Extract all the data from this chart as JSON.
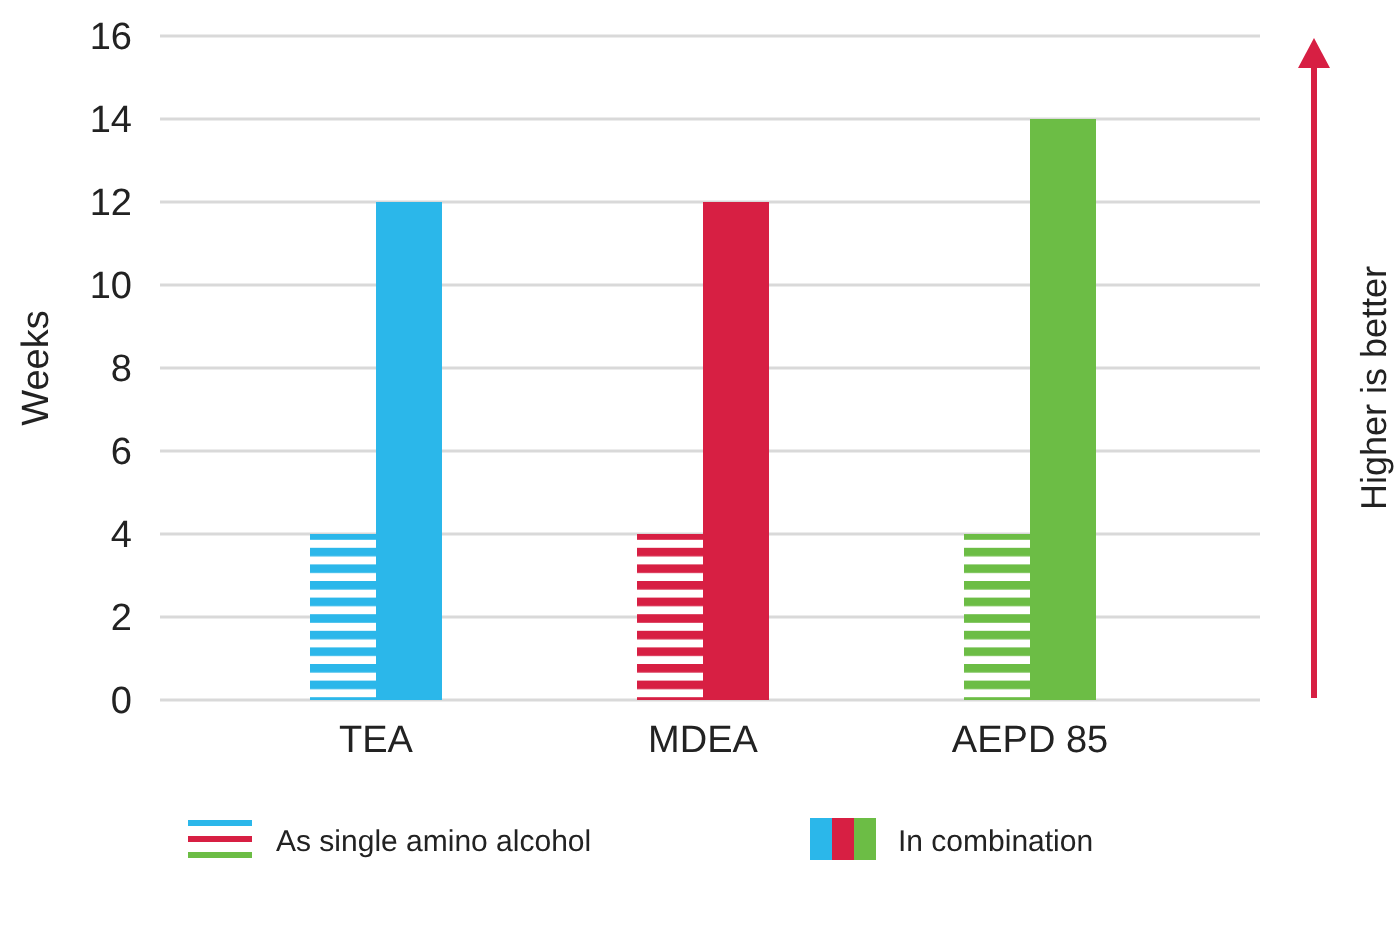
{
  "chart_data": {
    "type": "bar",
    "ylabel": "Weeks",
    "categories": [
      "TEA",
      "MDEA",
      "AEPD 85"
    ],
    "series": [
      {
        "name": "As single amino alcohol",
        "colors": [
          "#2bb7ea",
          "#d71f43",
          "#6cbd45"
        ],
        "values": [
          4,
          4,
          4
        ]
      },
      {
        "name": "In combination",
        "colors": [
          "#2bb7ea",
          "#d71f43",
          "#6cbd45"
        ],
        "values": [
          12,
          12,
          14
        ]
      }
    ],
    "ylim": [
      0,
      16
    ],
    "yticks": [
      0,
      2,
      4,
      6,
      8,
      10,
      12,
      14,
      16
    ],
    "grid": "y",
    "legend": "bottom",
    "annotations": [
      "Higher is better"
    ]
  }
}
